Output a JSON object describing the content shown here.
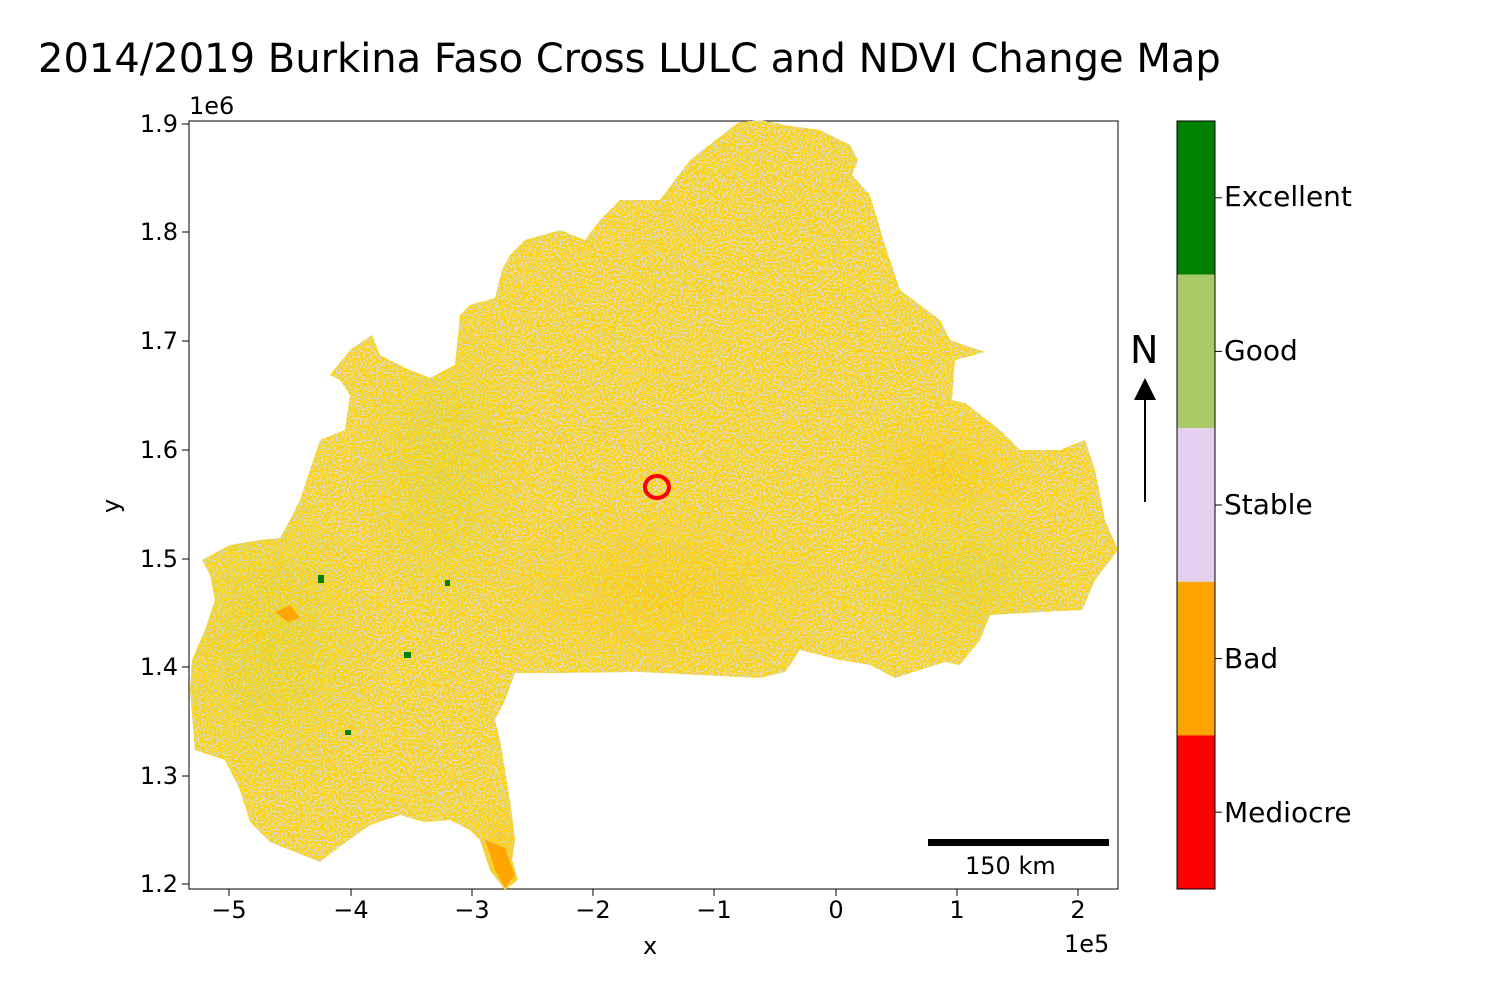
{
  "title": "2014/2019 Burkina Faso Cross LULC and NDVI Change Map",
  "axes": {
    "xlabel": "x",
    "ylabel": "y",
    "x_offset": "1e5",
    "y_offset": "1e6",
    "x_ticks": [
      "−5",
      "−4",
      "−3",
      "−2",
      "−1",
      "0",
      "1",
      "2"
    ],
    "y_ticks": [
      "1.9",
      "1.8",
      "1.7",
      "1.6",
      "1.5",
      "1.4",
      "1.3",
      "1.2"
    ],
    "xlim": [
      -5.3,
      2.35
    ],
    "ylim": [
      1.193,
      1.9
    ]
  },
  "north_arrow": {
    "label": "N"
  },
  "scale_bar": {
    "label": "150 km"
  },
  "legend": {
    "classes": [
      {
        "name": "Excellent",
        "color": "#008000"
      },
      {
        "name": "Good",
        "color": "#a8ca67"
      },
      {
        "name": "Stable",
        "color": "#e3d0ef"
      },
      {
        "name": "Bad",
        "color": "#ffa500"
      },
      {
        "name": "Mediocre",
        "color": "#ff0000"
      }
    ]
  }
}
